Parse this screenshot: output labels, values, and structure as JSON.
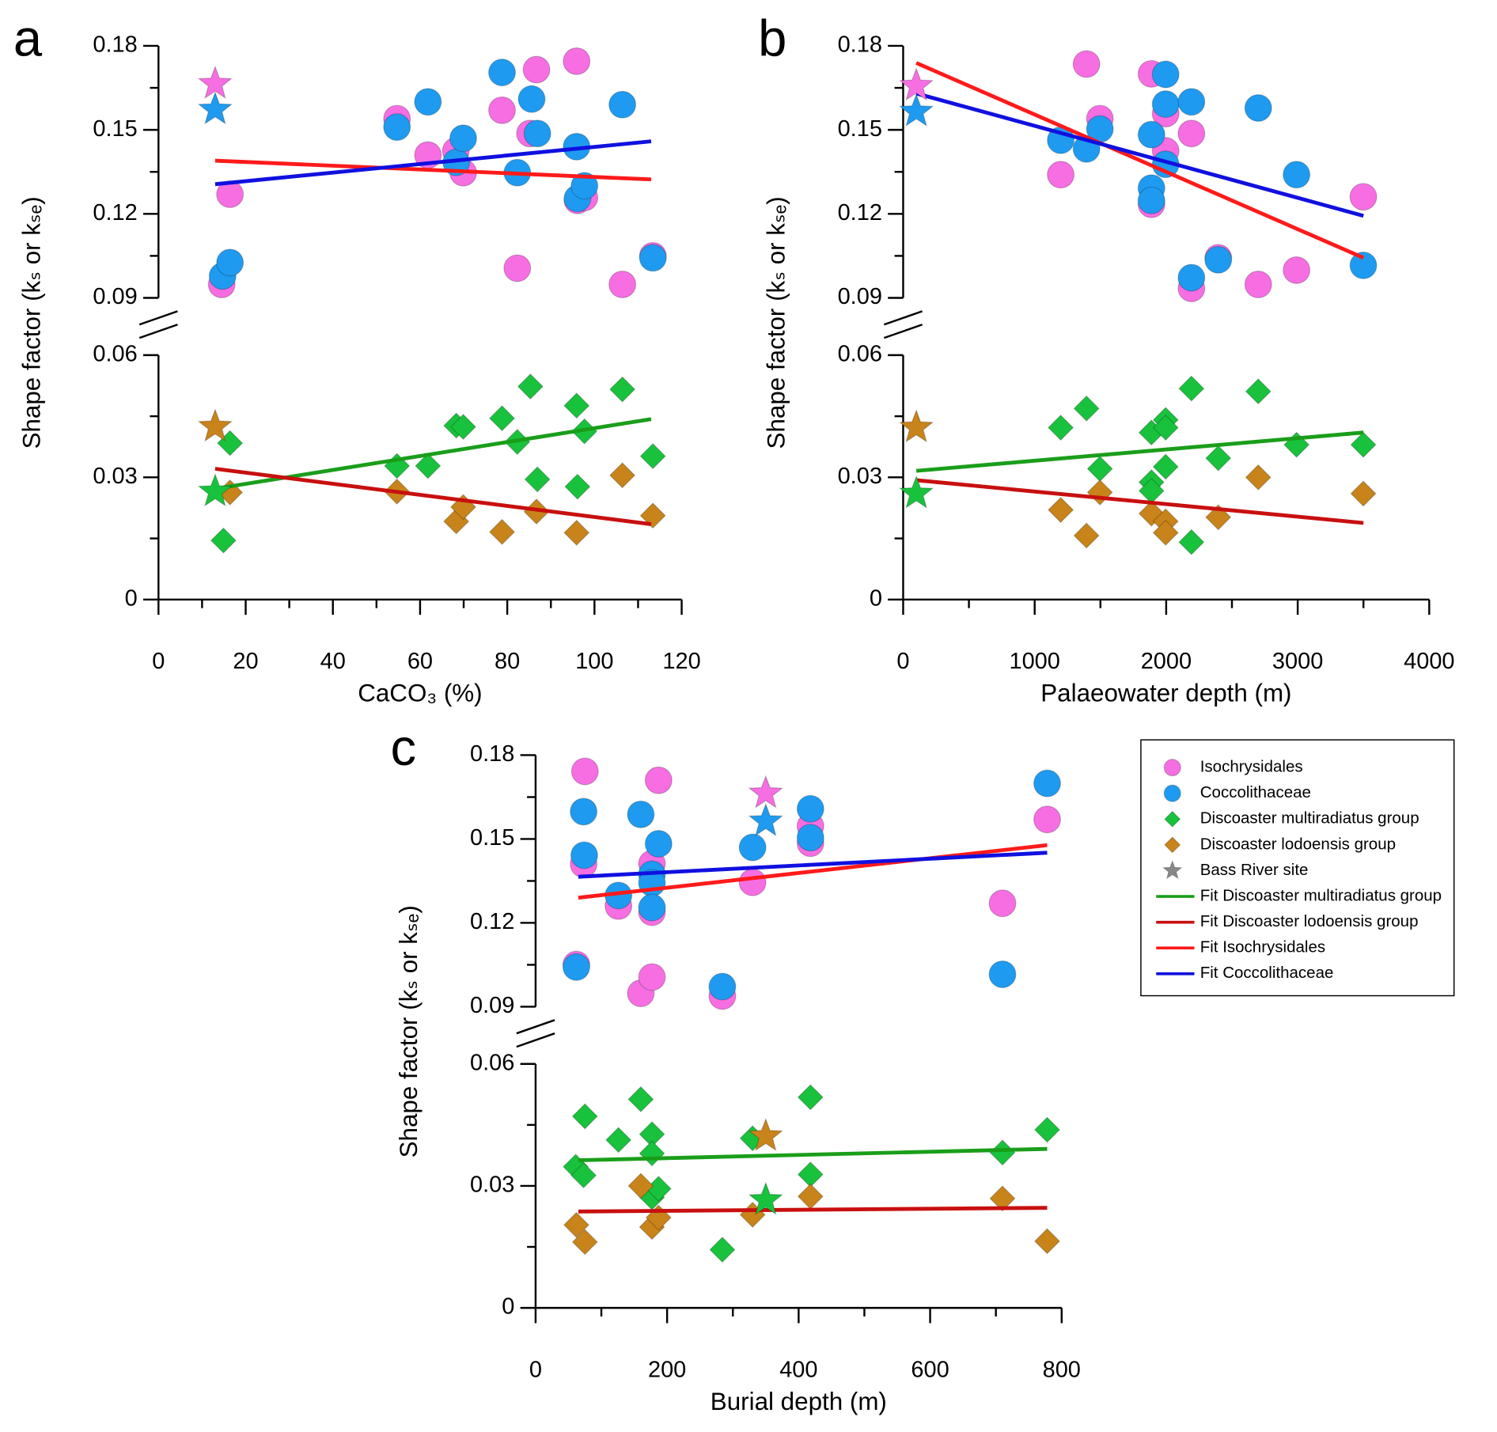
{
  "chart_data": [
    {
      "type": "scatter",
      "panel_label": "a",
      "xlabel": "CaCO₃ (%)",
      "ylabel": "Shape factor (kₛ or kₛₑ)",
      "xlim": [
        0,
        120
      ],
      "xticks": [
        0,
        20,
        40,
        60,
        80,
        100,
        120
      ],
      "xminorticks": [
        10,
        30,
        50,
        70,
        90,
        110
      ],
      "ylim": [
        0,
        0.18
      ],
      "ybreak": [
        0.06,
        0.09
      ],
      "yticks": [
        0,
        0.03,
        0.06,
        0.09,
        0.12,
        0.15,
        0.18
      ],
      "yminorticks": [
        0.015,
        0.045,
        0.105,
        0.135,
        0.165
      ],
      "legend": false,
      "series": [
        {
          "marker": "circle",
          "color": "#f76ee3",
          "x": [
            14.5,
            16.4,
            54.7,
            61.8,
            68.2,
            69.9,
            78.8,
            82.3,
            86.7,
            85.2,
            95.9,
            96.1,
            97.7,
            106.4,
            113.4
          ],
          "values": [
            0.0948,
            0.127,
            0.154,
            0.141,
            0.1425,
            0.1347,
            0.157,
            0.1006,
            0.1715,
            0.1487,
            0.1745,
            0.1248,
            0.1258,
            0.0948,
            0.105
          ]
        },
        {
          "marker": "circle",
          "color": "#1e9bf0",
          "x": [
            14.7,
            16.4,
            54.7,
            61.8,
            68.3,
            69.9,
            78.8,
            85.6,
            86.9,
            82.3,
            95.9,
            96.1,
            97.7,
            106.4,
            113.4
          ],
          "values": [
            0.0978,
            0.1026,
            0.151,
            0.16,
            0.1384,
            0.147,
            0.1705,
            0.161,
            0.1487,
            0.1347,
            0.144,
            0.1255,
            0.13,
            0.159,
            0.1043
          ]
        },
        {
          "marker": "diamond",
          "color": "#19c23c",
          "x": [
            16.4,
            14.9,
            54.7,
            61.8,
            68.3,
            69.9,
            78.8,
            82.3,
            85.3,
            86.9,
            95.9,
            96.1,
            97.7,
            106.4,
            113.4
          ],
          "values": [
            0.0384,
            0.0145,
            0.0328,
            0.0328,
            0.0427,
            0.0424,
            0.0445,
            0.0387,
            0.0523,
            0.0295,
            0.0476,
            0.0277,
            0.0413,
            0.0516,
            0.0352
          ]
        },
        {
          "marker": "diamond",
          "color": "#c8841a",
          "x": [
            16.4,
            54.7,
            68.3,
            69.9,
            78.8,
            86.7,
            95.9,
            106.4,
            113.4
          ],
          "values": [
            0.0263,
            0.0265,
            0.0192,
            0.0227,
            0.0166,
            0.0216,
            0.0164,
            0.0305,
            0.0206
          ]
        },
        {
          "marker": "star",
          "color": "#888888",
          "point_colors": [
            "#f76ee3",
            "#1e9bf0",
            "#c8841a",
            "#19c23c"
          ],
          "x": [
            13,
            13,
            13,
            13
          ],
          "values": [
            0.1664,
            0.1572,
            0.0424,
            0.0265
          ]
        },
        {
          "marker": "line",
          "color": "#1a9e1a",
          "x": [
            13,
            113
          ],
          "values": [
            0.0272,
            0.0443
          ]
        },
        {
          "marker": "line",
          "color": "#c8100f",
          "x": [
            13,
            113
          ],
          "values": [
            0.0321,
            0.0185
          ]
        },
        {
          "marker": "line",
          "color": "#ff1a1a",
          "x": [
            13,
            113
          ],
          "values": [
            0.139,
            0.1323
          ]
        },
        {
          "marker": "line",
          "color": "#1010e0",
          "x": [
            13,
            113
          ],
          "values": [
            0.1306,
            0.1459
          ]
        }
      ]
    },
    {
      "type": "scatter",
      "panel_label": "b",
      "xlabel": "Palaeowater depth (m)",
      "ylabel": "Shape factor (kₛ or kₛₑ)",
      "xlim": [
        0,
        4000
      ],
      "xticks": [
        0,
        1000,
        2000,
        3000,
        4000
      ],
      "xminorticks": [
        500,
        1500,
        2500,
        3500
      ],
      "ylim": [
        0,
        0.18
      ],
      "ybreak": [
        0.06,
        0.09
      ],
      "yticks": [
        0,
        0.03,
        0.06,
        0.09,
        0.12,
        0.15,
        0.18
      ],
      "yminorticks": [
        0.015,
        0.045,
        0.105,
        0.135,
        0.165
      ],
      "legend": false,
      "series": [
        {
          "marker": "circle",
          "color": "#f76ee3",
          "x": [
            1198,
            1394,
            1496,
            1888,
            1888,
            1996,
            1996,
            2192,
            2192,
            2396,
            2700,
            2991,
            3499
          ],
          "values": [
            0.134,
            0.1735,
            0.154,
            0.17,
            0.1234,
            0.1558,
            0.1425,
            0.1487,
            0.0934,
            0.1043,
            0.0948,
            0.0999,
            0.1261
          ]
        },
        {
          "marker": "circle",
          "color": "#1e9bf0",
          "x": [
            1198,
            1394,
            1496,
            1888,
            1888,
            1888,
            1996,
            1996,
            1996,
            2192,
            2192,
            2396,
            2700,
            2991,
            3499
          ],
          "values": [
            0.1463,
            0.1432,
            0.1503,
            0.1483,
            0.1292,
            0.1248,
            0.1698,
            0.1592,
            0.1377,
            0.16,
            0.0972,
            0.1036,
            0.1578,
            0.134,
            0.1016
          ]
        },
        {
          "marker": "diamond",
          "color": "#19c23c",
          "x": [
            1198,
            1394,
            1496,
            1888,
            1888,
            1888,
            1996,
            1996,
            1996,
            2192,
            2192,
            2396,
            2700,
            2991,
            3499
          ],
          "values": [
            0.0422,
            0.0469,
            0.0321,
            0.041,
            0.0288,
            0.0267,
            0.0441,
            0.0422,
            0.0326,
            0.0518,
            0.0141,
            0.0347,
            0.0511,
            0.038,
            0.038
          ]
        },
        {
          "marker": "diamond",
          "color": "#c8841a",
          "x": [
            1198,
            1394,
            1496,
            1888,
            1996,
            1996,
            2396,
            2700,
            3499
          ],
          "values": [
            0.022,
            0.0157,
            0.0263,
            0.0211,
            0.0192,
            0.0164,
            0.0202,
            0.03,
            0.026
          ]
        },
        {
          "marker": "star",
          "color": "#888888",
          "point_colors": [
            "#f76ee3",
            "#1e9bf0",
            "#c8841a",
            "#19c23c"
          ],
          "x": [
            100,
            100,
            100,
            100
          ],
          "values": [
            0.1657,
            0.1565,
            0.0422,
            0.026
          ]
        },
        {
          "marker": "line",
          "color": "#1a9e1a",
          "x": [
            100,
            3500
          ],
          "values": [
            0.0316,
            0.041
          ]
        },
        {
          "marker": "line",
          "color": "#c8100f",
          "x": [
            100,
            3500
          ],
          "values": [
            0.0293,
            0.0188
          ]
        },
        {
          "marker": "line",
          "color": "#ff1a1a",
          "x": [
            100,
            3500
          ],
          "values": [
            0.1739,
            0.1043
          ]
        },
        {
          "marker": "line",
          "color": "#1010e0",
          "x": [
            100,
            3500
          ],
          "values": [
            0.163,
            0.1193
          ]
        }
      ]
    },
    {
      "type": "scatter",
      "panel_label": "c",
      "xlabel": "Burial depth (m)",
      "ylabel": "Shape factor (kₛ or kₛₑ)",
      "xlim": [
        0,
        800
      ],
      "xticks": [
        0,
        200,
        400,
        600,
        800
      ],
      "xminorticks": [
        100,
        300,
        500,
        700
      ],
      "ylim": [
        0,
        0.18
      ],
      "ybreak": [
        0.06,
        0.09
      ],
      "yticks": [
        0,
        0.03,
        0.06,
        0.09,
        0.12,
        0.15,
        0.18
      ],
      "yminorticks": [
        0.015,
        0.045,
        0.105,
        0.135,
        0.165
      ],
      "legend": "outside-right",
      "series": [
        {
          "name": "Isochrysidales",
          "marker": "circle",
          "color": "#f76ee3",
          "x": [
            62,
            75,
            73,
            126,
            160,
            177,
            177,
            177,
            187,
            284,
            330,
            418,
            418,
            710,
            778
          ],
          "values": [
            0.1051,
            0.1742,
            0.141,
            0.126,
            0.0948,
            0.1006,
            0.1412,
            0.1238,
            0.171,
            0.0938,
            0.1345,
            0.1546,
            0.1485,
            0.127,
            0.157
          ]
        },
        {
          "name": "Coccolithaceae",
          "marker": "circle",
          "color": "#1e9bf0",
          "x": [
            62,
            73,
            74,
            126,
            160,
            177,
            177,
            177,
            187,
            284,
            330,
            418,
            418,
            710,
            778
          ],
          "values": [
            0.1042,
            0.1598,
            0.1442,
            0.1298,
            0.1588,
            0.1374,
            0.1343,
            0.1255,
            0.1483,
            0.0972,
            0.147,
            0.1608,
            0.1505,
            0.1016,
            0.1699
          ]
        },
        {
          "name": "Discoaster multiradiatus group",
          "marker": "diamond",
          "color": "#19c23c",
          "x": [
            61,
            75,
            73,
            126,
            160,
            177,
            177,
            177,
            187,
            284,
            330,
            418,
            418,
            710,
            778
          ],
          "values": [
            0.0347,
            0.0471,
            0.0326,
            0.0413,
            0.0513,
            0.0427,
            0.038,
            0.0272,
            0.0293,
            0.0143,
            0.0417,
            0.0518,
            0.0328,
            0.0382,
            0.0438
          ]
        },
        {
          "name": "Discoaster lodoensis group",
          "marker": "diamond",
          "color": "#c8841a",
          "x": [
            62,
            75,
            160,
            177,
            187,
            330,
            418,
            710,
            778
          ],
          "values": [
            0.0204,
            0.0162,
            0.03,
            0.0199,
            0.0222,
            0.0229,
            0.0274,
            0.0269,
            0.0164
          ]
        },
        {
          "name": "Bass River site",
          "marker": "star",
          "color": "#888888",
          "point_colors": [
            "#f76ee3",
            "#1e9bf0",
            "#c8841a",
            "#19c23c"
          ],
          "x": [
            350,
            350,
            350,
            350
          ],
          "values": [
            0.1663,
            0.1563,
            0.0422,
            0.0265
          ]
        },
        {
          "name": "Fit Discoaster multiradiatus group",
          "marker": "line",
          "color": "#1a9e1a",
          "x": [
            65,
            778
          ],
          "values": [
            0.0363,
            0.0391
          ]
        },
        {
          "name": "Fit Discoaster lodoensis group",
          "marker": "line",
          "color": "#c8100f",
          "x": [
            65,
            778
          ],
          "values": [
            0.0237,
            0.0246
          ]
        },
        {
          "name": "Fit Isochrysidales",
          "marker": "line",
          "color": "#ff1a1a",
          "x": [
            65,
            778
          ],
          "values": [
            0.129,
            0.1478
          ]
        },
        {
          "name": "Fit Coccolithaceae",
          "marker": "line",
          "color": "#1010e0",
          "x": [
            65,
            778
          ],
          "values": [
            0.1365,
            0.1451
          ]
        }
      ]
    }
  ]
}
